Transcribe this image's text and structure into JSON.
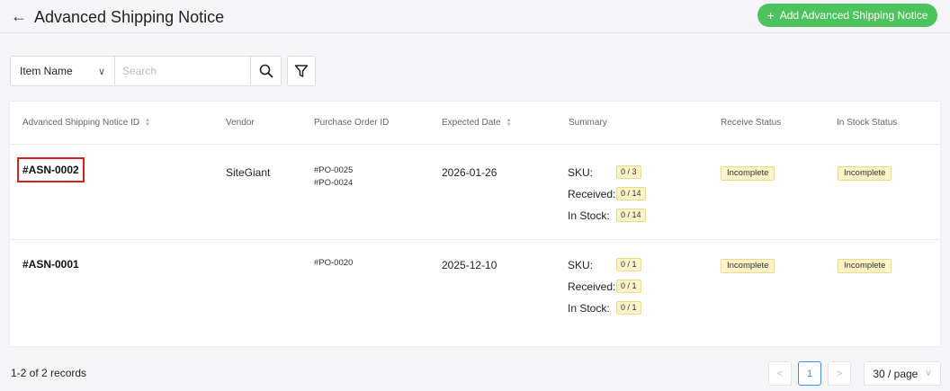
{
  "header": {
    "back_icon": "←",
    "title": "Advanced Shipping Notice",
    "add_button": "Add Advanced Shipping Notice",
    "add_icon": "+",
    "accent_color": "#4cc35c"
  },
  "filter": {
    "select_value": "Item Name",
    "search_placeholder": "Search",
    "search_value": ""
  },
  "table": {
    "columns": [
      "Advanced Shipping Notice ID",
      "Vendor",
      "Purchase Order ID",
      "Expected Date",
      "Summary",
      "Receive Status",
      "In Stock Status"
    ],
    "summary_labels": {
      "sku": "SKU:",
      "received": "Received:",
      "in_stock": "In Stock:"
    },
    "rows": [
      {
        "id": "#ASN-0002",
        "vendor": "SiteGiant",
        "po_ids": [
          "#PO-0025",
          "#PO-0024"
        ],
        "expected_date": "2026-01-26",
        "sku": "0 / 3",
        "received": "0 / 14",
        "in_stock": "0 / 14",
        "receive_status": "Incomplete",
        "in_stock_status": "Incomplete"
      },
      {
        "id": "#ASN-0001",
        "vendor": "",
        "po_ids": [
          "#PO-0020"
        ],
        "expected_date": "2025-12-10",
        "sku": "0 / 1",
        "received": "0 / 1",
        "in_stock": "0 / 1",
        "receive_status": "Incomplete",
        "in_stock_status": "Incomplete"
      }
    ]
  },
  "footer": {
    "records": "1-2 of 2 records",
    "prev": "<",
    "page": "1",
    "next": ">",
    "page_size": "30 / page"
  }
}
